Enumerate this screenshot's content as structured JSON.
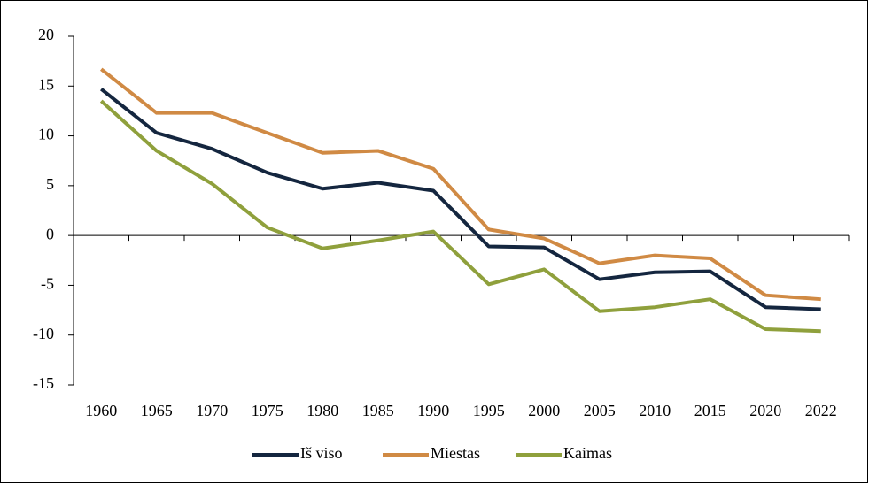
{
  "chart_data": {
    "type": "line",
    "categories": [
      "1960",
      "1965",
      "1970",
      "1975",
      "1980",
      "1985",
      "1990",
      "1995",
      "2000",
      "2005",
      "2010",
      "2015",
      "2020",
      "2022"
    ],
    "series": [
      {
        "name": "Iš viso",
        "color": "#14263f",
        "values": [
          14.7,
          10.3,
          8.7,
          6.3,
          4.7,
          5.3,
          4.5,
          -1.1,
          -1.2,
          -4.4,
          -3.7,
          -3.6,
          -7.2,
          -7.4
        ]
      },
      {
        "name": "Miestas",
        "color": "#d08a44",
        "values": [
          16.7,
          12.3,
          12.3,
          10.3,
          8.3,
          8.5,
          6.7,
          0.6,
          -0.3,
          -2.8,
          -2.0,
          -2.3,
          -6.0,
          -6.4
        ]
      },
      {
        "name": "Kaimas",
        "color": "#8fa03c",
        "values": [
          13.5,
          8.5,
          5.2,
          0.8,
          -1.3,
          -0.5,
          0.4,
          -4.9,
          -3.4,
          -7.6,
          -7.2,
          -6.4,
          -9.4,
          -9.6
        ]
      }
    ],
    "ylim": [
      -15,
      20
    ],
    "yticks": [
      -15,
      -10,
      -5,
      0,
      5,
      10,
      15,
      20
    ],
    "legend": "bottom"
  }
}
